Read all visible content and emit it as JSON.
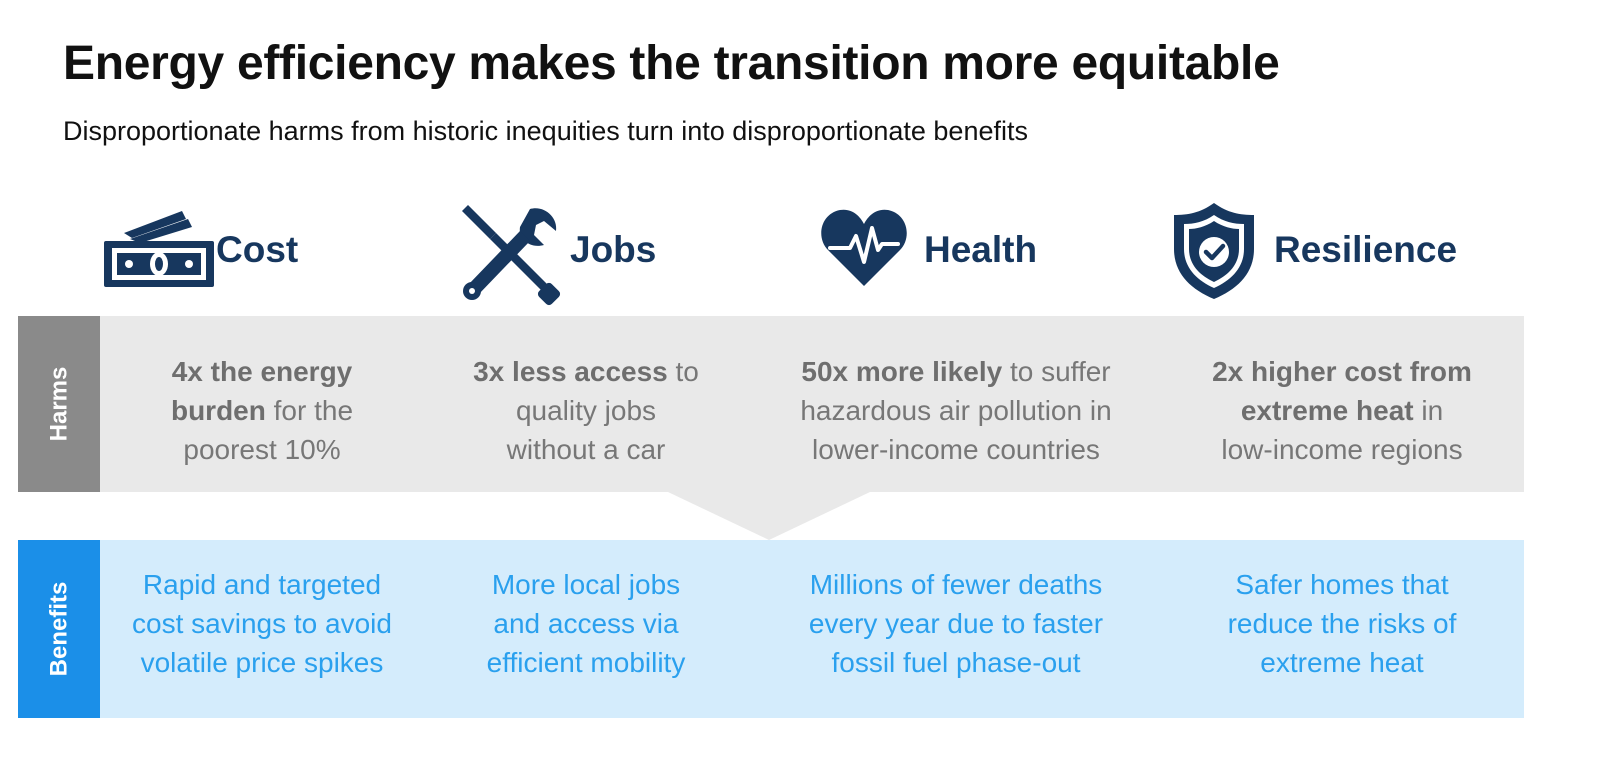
{
  "title": "Energy efficiency makes the transition more equitable",
  "subtitle": "Disproportionate harms from historic inequities turn into disproportionate benefits",
  "colors": {
    "icon": "#17375e",
    "harms_tab": "#8a8a8a",
    "harms_band": "#e9e9e9",
    "benefits_tab": "#1b8fe8",
    "benefits_band": "#d4ecfc",
    "benefit_text": "#2aa0ee"
  },
  "categories": [
    {
      "label": "Cost",
      "icon": "money-bills-icon"
    },
    {
      "label": "Jobs",
      "icon": "wrench-screwdriver-icon"
    },
    {
      "label": "Health",
      "icon": "heart-pulse-icon"
    },
    {
      "label": "Resilience",
      "icon": "shield-check-icon"
    }
  ],
  "harms": {
    "label": "Harms",
    "items": [
      {
        "bold1": "4x the energy",
        "bold2": "burden",
        "rest2": " for the",
        "line3": "poorest 10%"
      },
      {
        "bold1": "3x less access",
        "rest1": " to",
        "line2": "quality jobs",
        "line3": "without a car"
      },
      {
        "bold1": "50x more likely",
        "rest1": " to suffer",
        "line2": "hazardous air pollution in",
        "line3": "lower-income countries"
      },
      {
        "bold1": "2x higher cost from",
        "bold2": "extreme heat",
        "rest2": " in",
        "line3": "low-income regions"
      }
    ]
  },
  "benefits": {
    "label": "Benefits",
    "items": [
      {
        "line1": "Rapid and targeted",
        "line2": "cost savings to avoid",
        "line3": "volatile price spikes"
      },
      {
        "line1": "More local jobs",
        "line2": "and access via",
        "line3": "efficient mobility"
      },
      {
        "line1": "Millions of fewer deaths",
        "line2": "every year due to faster",
        "line3": "fossil fuel phase-out"
      },
      {
        "line1": "Safer homes that",
        "line2": "reduce the risks of",
        "line3": "extreme heat"
      }
    ]
  }
}
